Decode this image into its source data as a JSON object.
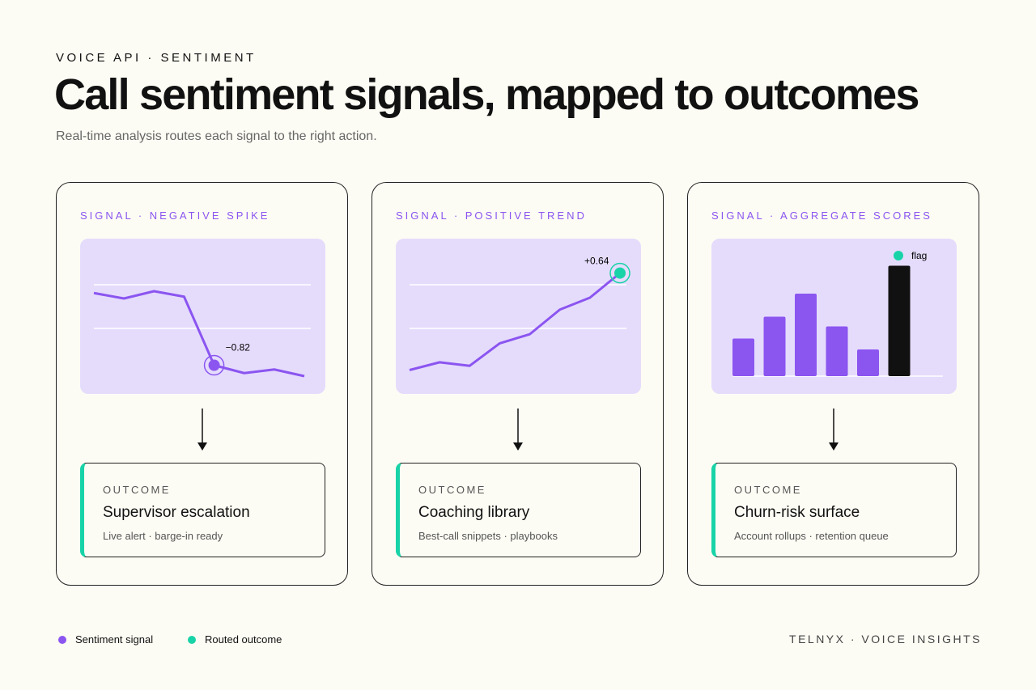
{
  "header": {
    "eyebrow": "VOICE API · SENTIMENT",
    "title": "Call sentiment signals, mapped to outcomes",
    "subtitle": "Real-time analysis routes each signal to the right action."
  },
  "cards": [
    {
      "signal": "SIGNAL · NEGATIVE SPIKE",
      "chart": {
        "type": "line",
        "values": [
          0.37,
          0.28,
          0.4,
          0.31,
          -0.82,
          -0.95,
          -0.89,
          -1.0
        ],
        "value_labels": [
          null,
          null,
          null,
          null,
          "−0.82",
          null,
          null,
          null
        ],
        "ylim": [
          -1.2,
          1
        ],
        "color": "#8b55f0",
        "highlight_color": "#8b55f0"
      },
      "outcome": {
        "label": "OUTCOME",
        "title": "Supervisor escalation",
        "detail": "Live alert · barge-in ready"
      }
    },
    {
      "signal": "SIGNAL · POSITIVE TREND",
      "chart": {
        "type": "line",
        "values": [
          -0.74,
          -0.63,
          -0.68,
          -0.36,
          -0.23,
          0.12,
          0.29,
          0.64
        ],
        "value_labels": [
          null,
          null,
          null,
          null,
          null,
          null,
          null,
          "+0.64"
        ],
        "ylim": [
          -1,
          0.9
        ],
        "color": "#8b55f0",
        "highlight_color": "#19d3a8"
      },
      "outcome": {
        "label": "OUTCOME",
        "title": "Coaching library",
        "detail": "Best-call snippets · playbooks"
      }
    },
    {
      "signal": "SIGNAL · AGGREGATE SCORES",
      "chart": {
        "type": "bar",
        "values": [
          31,
          49,
          68,
          41,
          22,
          91
        ],
        "ylim": [
          0,
          100
        ],
        "colors": [
          "#8b55f0",
          "#8b55f0",
          "#8b55f0",
          "#8b55f0",
          "#8b55f0",
          "#111111"
        ],
        "legend": {
          "label": "flag",
          "color": "#19d3a8"
        }
      },
      "outcome": {
        "label": "OUTCOME",
        "title": "Churn-risk surface",
        "detail": "Account rollups · retention queue"
      }
    }
  ],
  "legend": [
    {
      "label": "Sentiment signal",
      "color": "#8b55f0"
    },
    {
      "label": "Routed outcome",
      "color": "#19d3a8"
    }
  ],
  "footer": "TELNYX · VOICE INSIGHTS"
}
